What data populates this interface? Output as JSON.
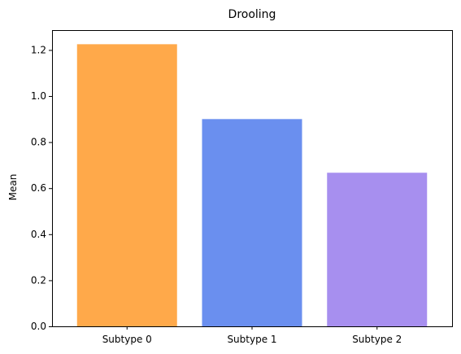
{
  "chart_data": {
    "type": "bar",
    "title": "Drooling",
    "xlabel": "",
    "ylabel": "Mean",
    "categories": [
      "Subtype 0",
      "Subtype 1",
      "Subtype 2"
    ],
    "values": [
      1.225,
      0.9,
      0.667
    ],
    "colors": [
      "#ffa94a",
      "#6a8fef",
      "#a78fef"
    ],
    "ylim": [
      0,
      1.2863
    ],
    "yticks": [
      {
        "value": 0.0,
        "label": "0.0"
      },
      {
        "value": 0.2,
        "label": "0.2"
      },
      {
        "value": 0.4,
        "label": "0.4"
      },
      {
        "value": 0.6,
        "label": "0.6"
      },
      {
        "value": 0.8,
        "label": "0.8"
      },
      {
        "value": 1.0,
        "label": "1.0"
      },
      {
        "value": 1.2,
        "label": "1.2"
      }
    ],
    "grid": false,
    "legend": "none"
  }
}
